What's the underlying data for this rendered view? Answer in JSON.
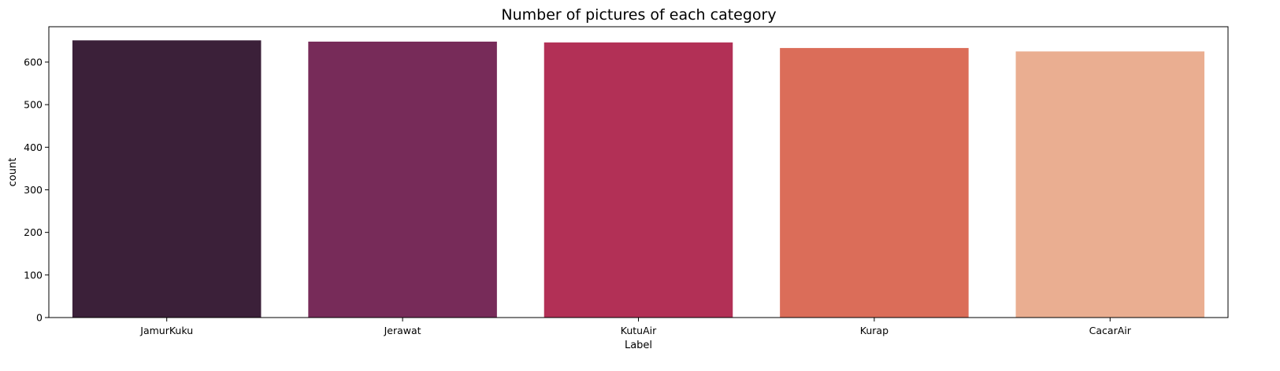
{
  "chart_data": {
    "type": "bar",
    "title": "Number of pictures of each category",
    "xlabel": "Label",
    "ylabel": "count",
    "categories": [
      "JamurKuku",
      "Jerawat",
      "KutuAir",
      "Kurap",
      "CacarAir"
    ],
    "values": [
      651,
      648,
      646,
      633,
      625
    ],
    "ylim": [
      0,
      683
    ],
    "yticks": [
      0,
      100,
      200,
      300,
      400,
      500,
      600
    ],
    "colors": [
      "#3b2039",
      "#772b59",
      "#b23056",
      "#db6d59",
      "#eaae91"
    ],
    "grid": false,
    "legend": "none"
  }
}
